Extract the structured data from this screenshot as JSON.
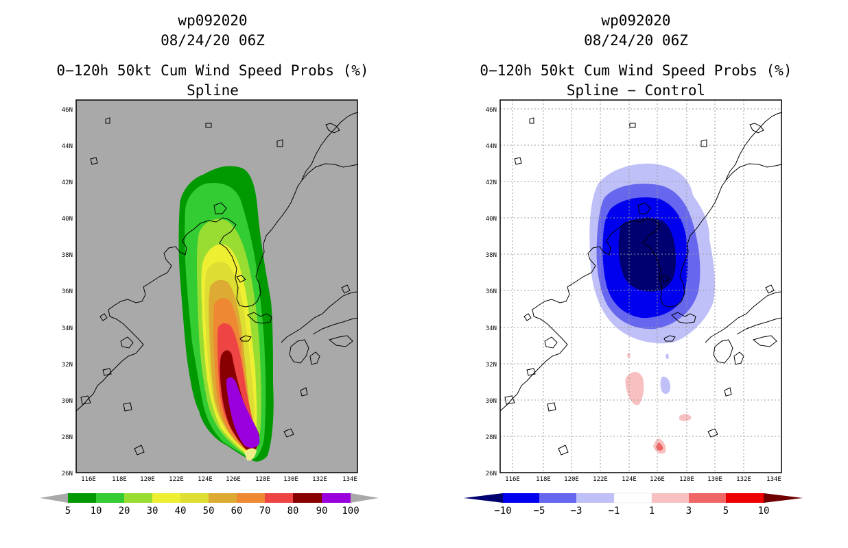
{
  "panels": [
    {
      "id": "left",
      "title_lines": [
        "wp092020",
        "08/24/20 06Z",
        "0−120h 50kt Cum Wind Speed Probs (%)",
        "Spline"
      ],
      "background": "#a9a9a9",
      "gridlines": false,
      "colorbar": {
        "levels": [
          "5",
          "10",
          "20",
          "30",
          "40",
          "50",
          "60",
          "70",
          "80",
          "90",
          "100"
        ],
        "colors": [
          "#009900",
          "#33cc33",
          "#99dd33",
          "#eeee33",
          "#dddd33",
          "#ddaa33",
          "#ee8833",
          "#ee4444",
          "#880000",
          "#9900dd"
        ],
        "under_color": "#a9a9a9",
        "over_color": "#a9a9a9"
      }
    },
    {
      "id": "right",
      "title_lines": [
        "wp092020",
        "08/24/20 06Z",
        "0−120h 50kt Cum Wind Speed Probs (%)",
        "Spline − Control"
      ],
      "background": "#ffffff",
      "gridlines": true,
      "colorbar": {
        "levels": [
          "−10",
          "−5",
          "−3",
          "−1",
          "1",
          "3",
          "5",
          "10"
        ],
        "colors": [
          "#0000ee",
          "#6666ee",
          "#c0c0f8",
          "#ffffff",
          "#f8c0c0",
          "#ee6666",
          "#ee0000"
        ],
        "under_color": "#000070",
        "over_color": "#700000"
      }
    }
  ],
  "axes": {
    "lon_ticks": [
      "116E",
      "118E",
      "120E",
      "122E",
      "124E",
      "126E",
      "128E",
      "130E",
      "132E",
      "134E"
    ],
    "lat_ticks": [
      "26N",
      "28N",
      "30N",
      "32N",
      "34N",
      "36N",
      "38N",
      "40N",
      "42N",
      "44N",
      "46N"
    ]
  },
  "colors": {
    "left_contours": [
      "#009900",
      "#33cc33",
      "#99dd33",
      "#eeee33",
      "#dddd33",
      "#ddaa33",
      "#ee8833",
      "#ee4444",
      "#880000",
      "#9900dd"
    ],
    "right_contours": [
      "#c0c0f8",
      "#6666ee",
      "#0000ee",
      "#000070",
      "#f8c0c0",
      "#ee6666"
    ]
  }
}
